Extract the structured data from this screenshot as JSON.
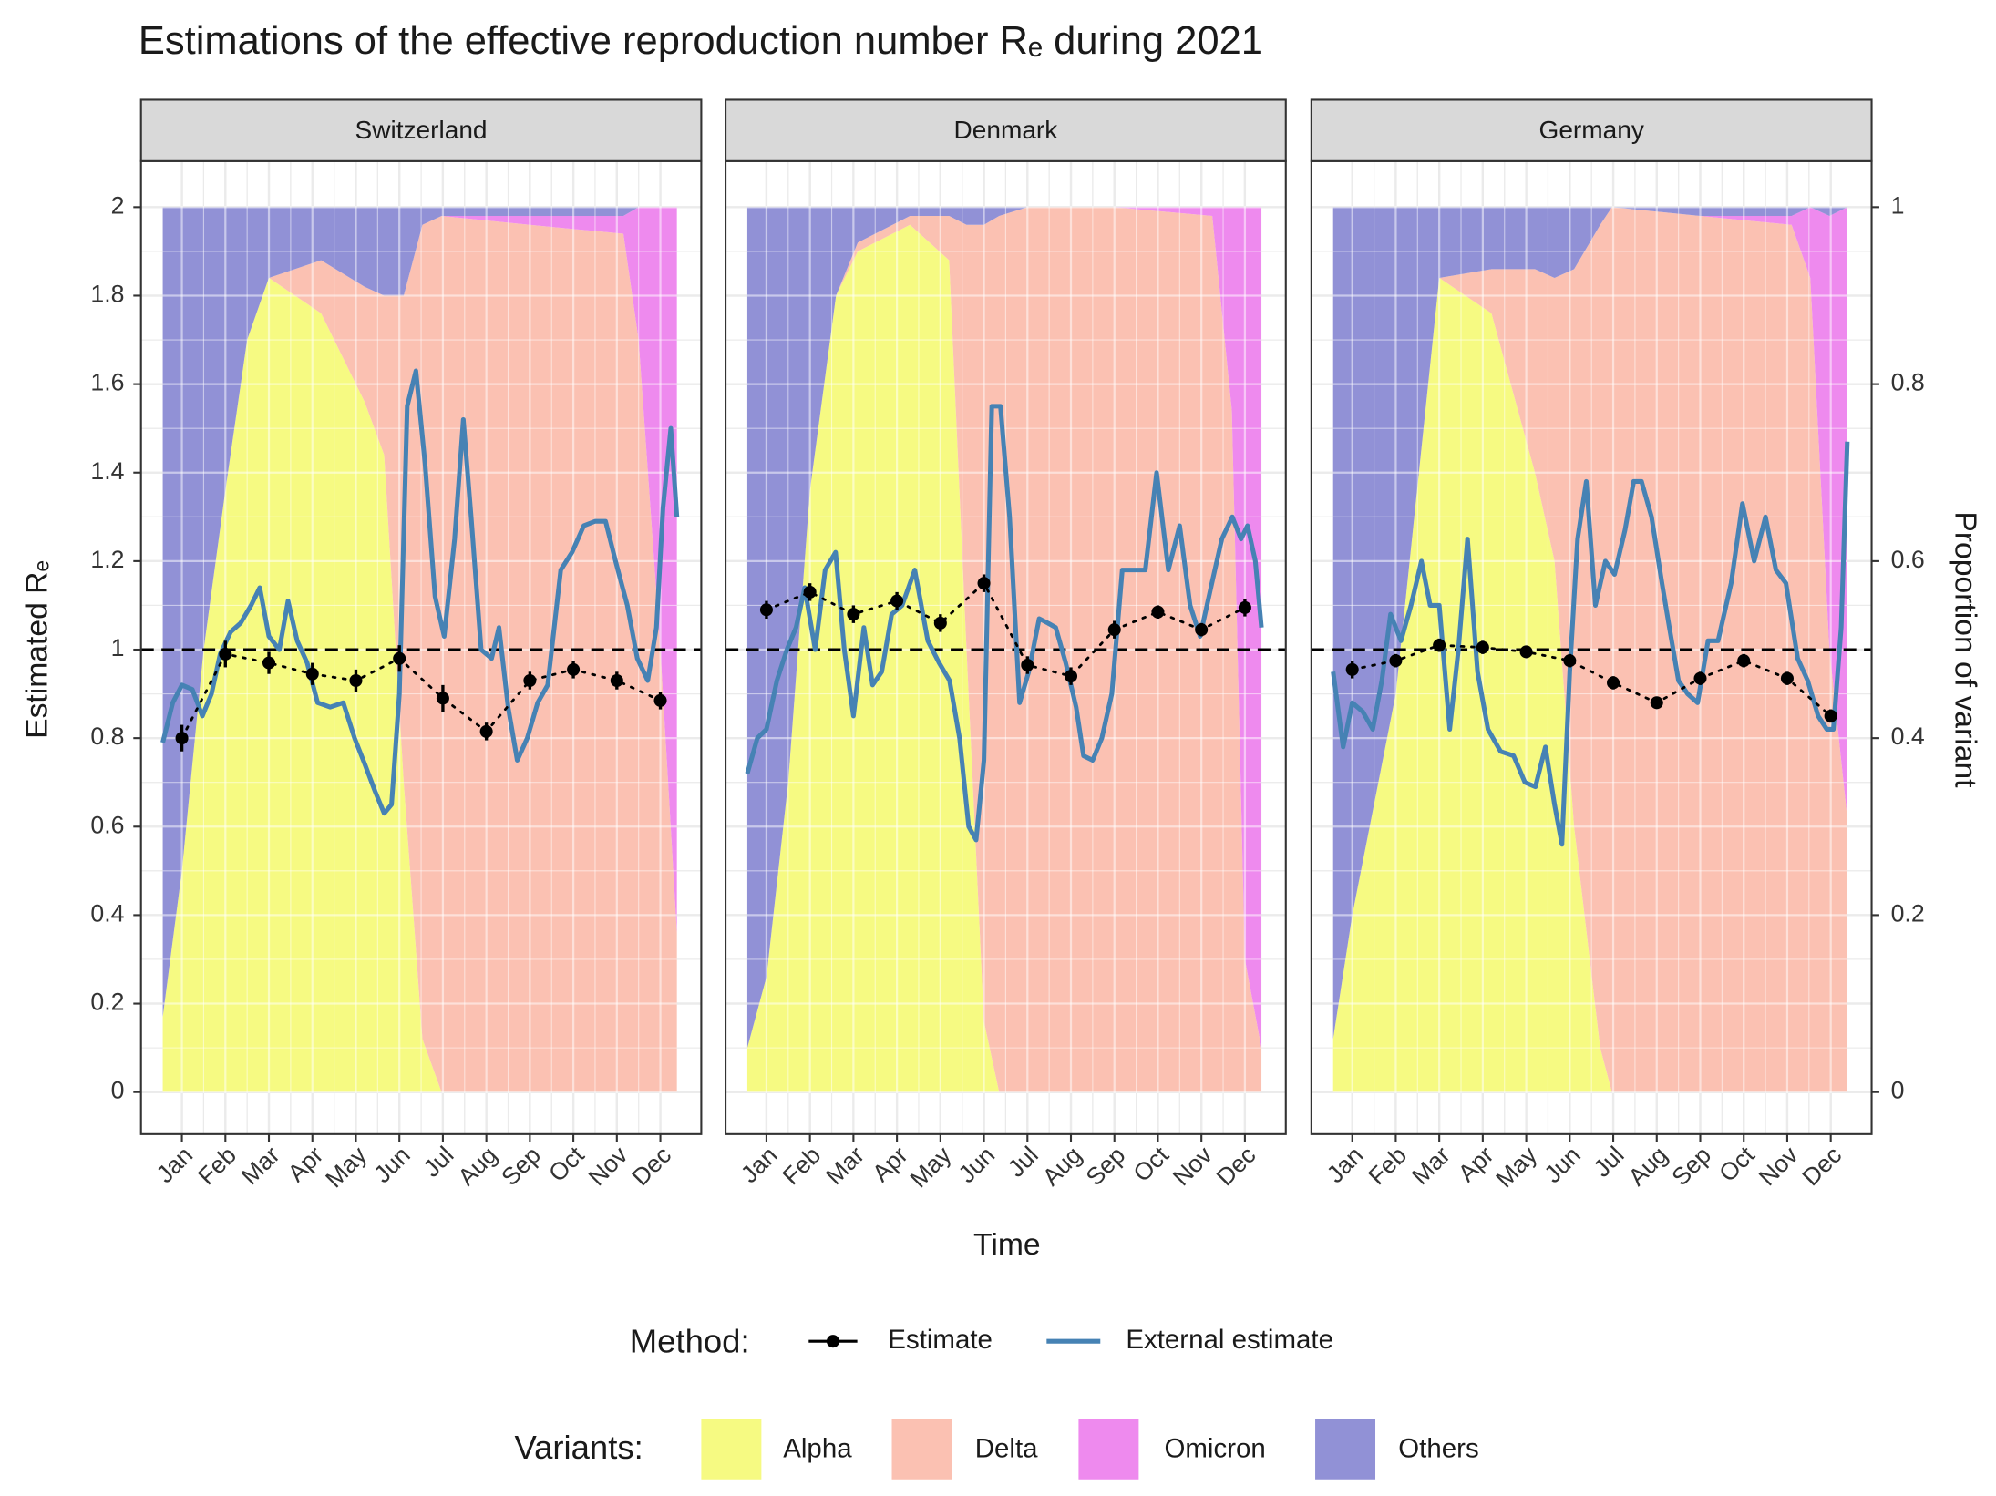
{
  "title": "Estimations of the effective reproduction number Rₑ during 2021",
  "x_label": "Time",
  "y_label": "Estimated Rₑ",
  "y2_label": "Proportion of variant",
  "method_legend_title": "Method:",
  "variant_legend_title": "Variants:",
  "chart_data": [
    {
      "type": "area-line",
      "facet": "Switzerland",
      "grid": true,
      "hline": 1,
      "xlim": [
        0.06,
        12.94
      ],
      "xticks": [
        {
          "value": 1,
          "label": "Jan"
        },
        {
          "value": 2,
          "label": "Feb"
        },
        {
          "value": 3,
          "label": "Mar"
        },
        {
          "value": 4,
          "label": "Apr"
        },
        {
          "value": 5,
          "label": "May"
        },
        {
          "value": 6,
          "label": "Jun"
        },
        {
          "value": 7,
          "label": "Jul"
        },
        {
          "value": 8,
          "label": "Aug"
        },
        {
          "value": 9,
          "label": "Sep"
        },
        {
          "value": 10,
          "label": "Oct"
        },
        {
          "value": 11,
          "label": "Nov"
        },
        {
          "value": 12,
          "label": "Dec"
        }
      ],
      "ylim": [
        -0.095,
        2.104
      ],
      "yticks": [
        0,
        0.2,
        0.4,
        0.6,
        0.8,
        1,
        1.2,
        1.4,
        1.6,
        1.8,
        2
      ],
      "y2lim": [
        -0.0475,
        1.052
      ],
      "variants": {
        "x": [
          0.56,
          1.0,
          1.5,
          2.0,
          2.5,
          3.0,
          4.2,
          5.2,
          5.65,
          6.1,
          6.53,
          6.97,
          9.0,
          11.15,
          11.5,
          12.0,
          12.38
        ],
        "series": [
          {
            "name": "Alpha",
            "color": "#f6fa82",
            "values": [
              0.085,
              0.25,
              0.5,
              0.68,
              0.85,
              0.92,
              0.88,
              0.78,
              0.72,
              0.35,
              0.06,
              0,
              0,
              0,
              0,
              0,
              0
            ]
          },
          {
            "name": "Delta",
            "color": "#fbc1b2",
            "values": [
              0,
              0,
              0,
              0,
              0,
              0,
              0.06,
              0.13,
              0.18,
              0.55,
              0.92,
              0.99,
              0.98,
              0.97,
              0.85,
              0.5,
              0.18
            ]
          },
          {
            "name": "Omicron",
            "color": "#ee8aee",
            "values": [
              0,
              0,
              0,
              0,
              0,
              0,
              0,
              0,
              0,
              0,
              0,
              0,
              0.01,
              0.02,
              0.15,
              0.5,
              0.82
            ]
          },
          {
            "name": "Others",
            "color": "#9191d6",
            "values": [
              0.915,
              0.75,
              0.5,
              0.32,
              0.15,
              0.08,
              0.06,
              0.09,
              0.1,
              0.1,
              0.02,
              0.01,
              0.01,
              0.01,
              0,
              0,
              0
            ]
          }
        ]
      },
      "series": [
        {
          "name": "Estimate",
          "color": "#000000",
          "x": [
            1,
            2,
            3,
            4,
            5,
            6,
            7,
            8,
            9,
            10,
            11,
            12
          ],
          "values": [
            0.8,
            0.99,
            0.97,
            0.945,
            0.93,
            0.98,
            0.89,
            0.815,
            0.93,
            0.955,
            0.93,
            0.885
          ],
          "errors": [
            0.03,
            0.03,
            0.025,
            0.025,
            0.025,
            0.03,
            0.03,
            0.02,
            0.02,
            0.02,
            0.02,
            0.02
          ]
        },
        {
          "name": "External estimate",
          "color": "#4682b4",
          "x": [
            0.56,
            0.79,
            1.0,
            1.24,
            1.47,
            1.68,
            1.88,
            2.12,
            2.35,
            2.59,
            2.79,
            3.0,
            3.24,
            3.44,
            3.65,
            3.88,
            4.12,
            4.41,
            4.71,
            4.97,
            5.21,
            5.44,
            5.65,
            5.82,
            6.0,
            6.18,
            6.38,
            6.59,
            6.82,
            7.03,
            7.27,
            7.47,
            7.65,
            7.88,
            8.12,
            8.29,
            8.5,
            8.71,
            8.94,
            9.18,
            9.41,
            9.71,
            9.97,
            10.24,
            10.5,
            10.74,
            10.97,
            11.24,
            11.47,
            11.71,
            11.91,
            12.06,
            12.24,
            12.38
          ],
          "values": [
            0.79,
            0.88,
            0.92,
            0.91,
            0.85,
            0.9,
            0.99,
            1.04,
            1.06,
            1.1,
            1.14,
            1.03,
            1.0,
            1.11,
            1.02,
            0.97,
            0.88,
            0.87,
            0.88,
            0.8,
            0.74,
            0.68,
            0.63,
            0.65,
            0.9,
            1.55,
            1.63,
            1.42,
            1.12,
            1.03,
            1.25,
            1.52,
            1.3,
            1.0,
            0.98,
            1.05,
            0.87,
            0.75,
            0.8,
            0.88,
            0.92,
            1.18,
            1.22,
            1.28,
            1.29,
            1.29,
            1.2,
            1.1,
            0.98,
            0.93,
            1.05,
            1.32,
            1.5,
            1.3
          ]
        }
      ]
    },
    {
      "type": "area-line",
      "facet": "Denmark",
      "grid": true,
      "hline": 1,
      "xlim": [
        0.06,
        12.94
      ],
      "xticks": [
        {
          "value": 1,
          "label": "Jan"
        },
        {
          "value": 2,
          "label": "Feb"
        },
        {
          "value": 3,
          "label": "Mar"
        },
        {
          "value": 4,
          "label": "Apr"
        },
        {
          "value": 5,
          "label": "May"
        },
        {
          "value": 6,
          "label": "Jun"
        },
        {
          "value": 7,
          "label": "Jul"
        },
        {
          "value": 8,
          "label": "Aug"
        },
        {
          "value": 9,
          "label": "Sep"
        },
        {
          "value": 10,
          "label": "Oct"
        },
        {
          "value": 11,
          "label": "Nov"
        },
        {
          "value": 12,
          "label": "Dec"
        }
      ],
      "ylim": [
        -0.095,
        2.104
      ],
      "yticks": [
        0,
        0.2,
        0.4,
        0.6,
        0.8,
        1,
        1.2,
        1.4,
        1.6,
        1.8,
        2
      ],
      "y2lim": [
        -0.0475,
        1.052
      ],
      "variants": {
        "x": [
          0.56,
          1.0,
          1.5,
          2.0,
          2.6,
          3.1,
          4.3,
          5.2,
          5.6,
          6.0,
          6.35,
          7.0,
          9.0,
          11.25,
          11.7,
          12.0,
          12.38
        ],
        "series": [
          {
            "color": "#f6fa82",
            "values": [
              0.05,
              0.13,
              0.35,
              0.68,
              0.9,
              0.95,
              0.98,
              0.94,
              0.5,
              0.08,
              0,
              0,
              0,
              0,
              0,
              0,
              0
            ]
          },
          {
            "color": "#fbc1b2",
            "values": [
              0,
              0,
              0,
              0,
              0,
              0.01,
              0.01,
              0.05,
              0.48,
              0.9,
              0.99,
              1.0,
              1.0,
              0.99,
              0.77,
              0.15,
              0.05
            ]
          },
          {
            "color": "#ee8aee",
            "values": [
              0,
              0,
              0,
              0,
              0,
              0,
              0,
              0,
              0,
              0,
              0,
              0,
              0,
              0.01,
              0.23,
              0.85,
              0.95
            ]
          },
          {
            "color": "#9191d6",
            "values": [
              0.95,
              0.87,
              0.65,
              0.32,
              0.1,
              0.04,
              0.01,
              0.01,
              0.02,
              0.02,
              0.01,
              0,
              0,
              0,
              0,
              0,
              0
            ]
          }
        ]
      },
      "series": [
        {
          "color": "#000000",
          "x": [
            1,
            2,
            3,
            4,
            5,
            6,
            7,
            8,
            9,
            10,
            11,
            12
          ],
          "values": [
            1.09,
            1.13,
            1.08,
            1.11,
            1.06,
            1.15,
            0.965,
            0.94,
            1.045,
            1.085,
            1.045,
            1.095
          ],
          "errors": [
            0.02,
            0.02,
            0.02,
            0.02,
            0.02,
            0.02,
            0.02,
            0.02,
            0.02,
            0.015,
            0.015,
            0.02
          ]
        },
        {
          "color": "#4682b4",
          "x": [
            0.56,
            0.79,
            1.0,
            1.24,
            1.47,
            1.68,
            1.88,
            2.12,
            2.35,
            2.59,
            2.79,
            3.0,
            3.24,
            3.44,
            3.65,
            3.88,
            4.12,
            4.41,
            4.71,
            4.97,
            5.21,
            5.44,
            5.65,
            5.82,
            6.0,
            6.18,
            6.38,
            6.59,
            6.82,
            7.03,
            7.27,
            7.47,
            7.65,
            7.88,
            8.12,
            8.29,
            8.5,
            8.71,
            8.94,
            9.18,
            9.41,
            9.71,
            9.97,
            10.24,
            10.5,
            10.74,
            10.97,
            11.24,
            11.47,
            11.71,
            11.91,
            12.06,
            12.24,
            12.38
          ],
          "values": [
            0.72,
            0.8,
            0.82,
            0.93,
            1.0,
            1.05,
            1.14,
            1.0,
            1.18,
            1.22,
            1.0,
            0.85,
            1.05,
            0.92,
            0.95,
            1.08,
            1.1,
            1.18,
            1.02,
            0.97,
            0.93,
            0.8,
            0.6,
            0.57,
            0.75,
            1.55,
            1.55,
            1.3,
            0.88,
            0.95,
            1.07,
            1.06,
            1.05,
            0.97,
            0.87,
            0.76,
            0.75,
            0.8,
            0.9,
            1.18,
            1.18,
            1.18,
            1.4,
            1.18,
            1.28,
            1.1,
            1.03,
            1.15,
            1.25,
            1.3,
            1.25,
            1.28,
            1.2,
            1.05
          ]
        }
      ]
    },
    {
      "type": "area-line",
      "facet": "Germany",
      "grid": true,
      "hline": 1,
      "xlim": [
        0.06,
        12.94
      ],
      "xticks": [
        {
          "value": 1,
          "label": "Jan"
        },
        {
          "value": 2,
          "label": "Feb"
        },
        {
          "value": 3,
          "label": "Mar"
        },
        {
          "value": 4,
          "label": "Apr"
        },
        {
          "value": 5,
          "label": "May"
        },
        {
          "value": 6,
          "label": "Jun"
        },
        {
          "value": 7,
          "label": "Jul"
        },
        {
          "value": 8,
          "label": "Aug"
        },
        {
          "value": 9,
          "label": "Sep"
        },
        {
          "value": 10,
          "label": "Oct"
        },
        {
          "value": 11,
          "label": "Nov"
        },
        {
          "value": 12,
          "label": "Dec"
        }
      ],
      "ylim": [
        -0.095,
        2.104
      ],
      "yticks": [
        0,
        0.2,
        0.4,
        0.6,
        0.8,
        1,
        1.2,
        1.4,
        1.6,
        1.8,
        2
      ],
      "y2lim": [
        -0.0475,
        1.052
      ],
      "y2ticks": [
        0,
        0.2,
        0.4,
        0.6,
        0.8,
        1
      ],
      "variants": {
        "x": [
          0.56,
          1.0,
          2.0,
          3.0,
          4.2,
          5.2,
          5.65,
          6.1,
          6.7,
          6.97,
          9.0,
          11.1,
          11.53,
          11.97,
          12.38
        ],
        "series": [
          {
            "color": "#f6fa82",
            "values": [
              0.06,
              0.2,
              0.45,
              0.92,
              0.88,
              0.7,
              0.6,
              0.3,
              0.05,
              0,
              0,
              0,
              0,
              0,
              0
            ]
          },
          {
            "color": "#fbc1b2",
            "values": [
              0,
              0,
              0,
              0,
              0.05,
              0.23,
              0.32,
              0.63,
              0.93,
              1.0,
              0.99,
              0.98,
              0.92,
              0.5,
              0.31
            ]
          },
          {
            "color": "#ee8aee",
            "values": [
              0,
              0,
              0,
              0,
              0,
              0,
              0,
              0,
              0,
              0,
              0,
              0.01,
              0.08,
              0.49,
              0.69
            ]
          },
          {
            "color": "#9191d6",
            "values": [
              0.94,
              0.8,
              0.55,
              0.08,
              0.07,
              0.07,
              0.08,
              0.07,
              0.02,
              0,
              0.01,
              0.01,
              0,
              0.01,
              0
            ]
          }
        ]
      },
      "series": [
        {
          "color": "#000000",
          "x": [
            1,
            2,
            3,
            4,
            5,
            6,
            7,
            8,
            9,
            10,
            11,
            12
          ],
          "values": [
            0.955,
            0.975,
            1.01,
            1.005,
            0.995,
            0.975,
            0.925,
            0.88,
            0.935,
            0.975,
            0.935,
            0.85
          ],
          "errors": [
            0.02,
            0.015,
            0.015,
            0.015,
            0.01,
            0.015,
            0.015,
            0.01,
            0.015,
            0.015,
            0.015,
            0.015
          ]
        },
        {
          "color": "#4682b4",
          "x": [
            0.56,
            0.79,
            1.0,
            1.24,
            1.47,
            1.68,
            1.88,
            2.12,
            2.35,
            2.59,
            2.79,
            3.0,
            3.24,
            3.44,
            3.65,
            3.88,
            4.12,
            4.41,
            4.71,
            4.97,
            5.21,
            5.44,
            5.65,
            5.82,
            6.0,
            6.18,
            6.38,
            6.59,
            6.82,
            7.03,
            7.27,
            7.47,
            7.65,
            7.88,
            8.12,
            8.29,
            8.5,
            8.71,
            8.94,
            9.18,
            9.41,
            9.71,
            9.97,
            10.24,
            10.5,
            10.74,
            10.97,
            11.24,
            11.47,
            11.71,
            11.91,
            12.06,
            12.24,
            12.38
          ],
          "values": [
            0.95,
            0.78,
            0.88,
            0.86,
            0.82,
            0.93,
            1.08,
            1.02,
            1.1,
            1.2,
            1.1,
            1.1,
            0.82,
            1.0,
            1.25,
            0.95,
            0.82,
            0.77,
            0.76,
            0.7,
            0.69,
            0.78,
            0.65,
            0.56,
            0.95,
            1.25,
            1.38,
            1.1,
            1.2,
            1.17,
            1.27,
            1.38,
            1.38,
            1.3,
            1.15,
            1.05,
            0.93,
            0.9,
            0.88,
            1.02,
            1.02,
            1.15,
            1.33,
            1.2,
            1.3,
            1.18,
            1.15,
            0.98,
            0.93,
            0.85,
            0.82,
            0.82,
            1.05,
            1.47
          ]
        }
      ]
    }
  ]
}
